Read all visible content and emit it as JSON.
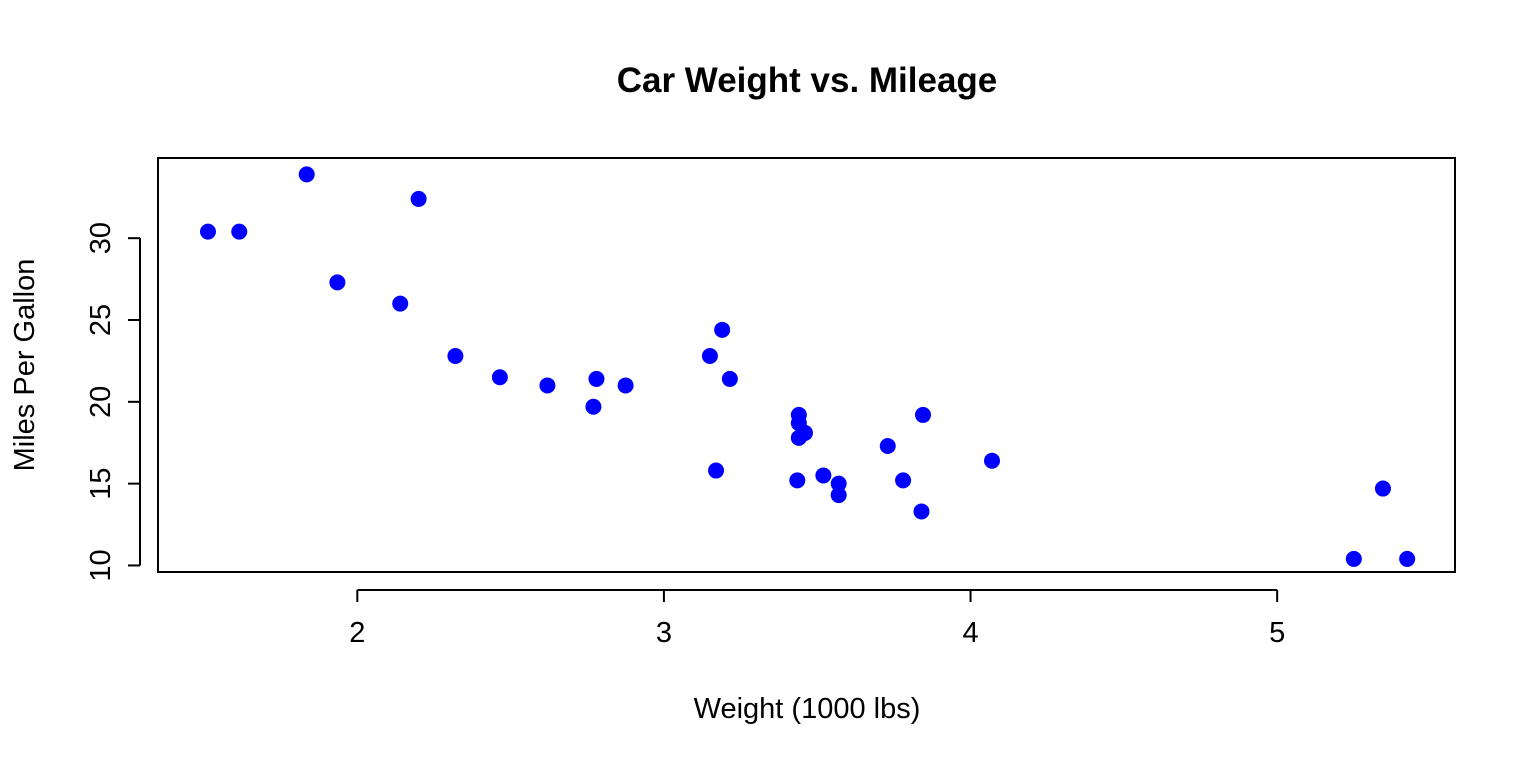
{
  "chart_data": {
    "type": "scatter",
    "title": "Car Weight vs. Mileage",
    "xlabel": "Weight (1000 lbs)",
    "ylabel": "Miles Per Gallon",
    "xlim": [
      1.35,
      5.58
    ],
    "ylim": [
      9.6,
      34.9
    ],
    "xticks": [
      2,
      3,
      4,
      5
    ],
    "yticks": [
      10,
      15,
      20,
      25,
      30
    ],
    "grid": false,
    "legend": "none",
    "marker_color": "#0000ff",
    "series": [
      {
        "x": [
          2.62,
          2.875,
          2.32,
          3.215,
          3.44,
          3.46,
          3.57,
          3.19,
          3.15,
          3.44,
          3.44,
          4.07,
          3.73,
          3.78,
          5.25,
          5.424,
          5.345,
          2.2,
          1.615,
          1.835,
          2.465,
          3.52,
          3.435,
          3.84,
          3.845,
          1.935,
          2.14,
          1.513,
          3.17,
          2.77,
          3.57,
          2.78
        ],
        "y": [
          21.0,
          21.0,
          22.8,
          21.4,
          18.7,
          18.1,
          14.3,
          24.4,
          22.8,
          19.2,
          17.8,
          16.4,
          17.3,
          15.2,
          10.4,
          10.4,
          14.7,
          32.4,
          30.4,
          33.9,
          21.5,
          15.5,
          15.2,
          13.3,
          19.2,
          27.3,
          26.0,
          30.4,
          15.8,
          19.7,
          15.0,
          21.4
        ]
      }
    ]
  }
}
